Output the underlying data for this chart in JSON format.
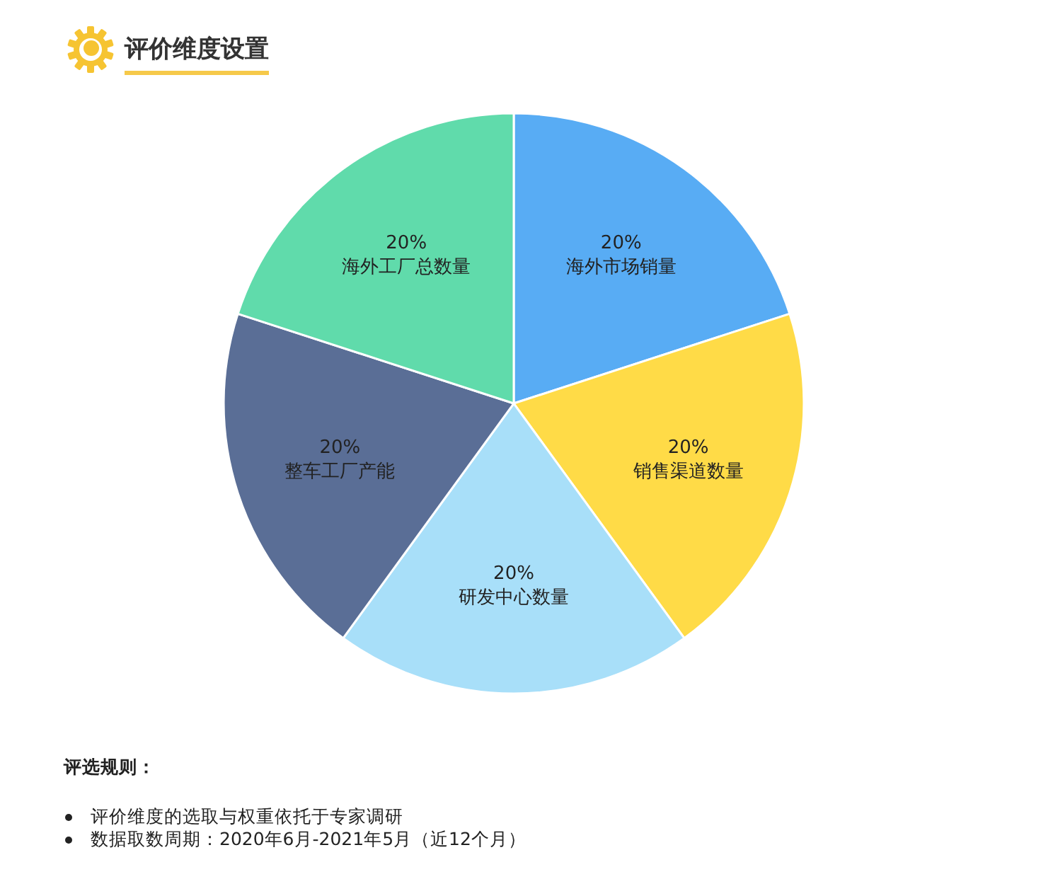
{
  "chart_data": {
    "type": "pie",
    "title": "评价维度设置",
    "categories": [
      "海外市场销量",
      "销售渠道数量",
      "研发中心数量",
      "整车工厂产能",
      "海外工厂总数量"
    ],
    "values": [
      20,
      20,
      20,
      20,
      20
    ],
    "value_labels": [
      "20%",
      "20%",
      "20%",
      "20%",
      "20%"
    ],
    "colors": [
      "#58acf4",
      "#ffdb47",
      "#a8dff9",
      "#5a6e96",
      "#60dbab"
    ],
    "annotations": [
      "评选规则：",
      "评价维度的选取与权重依托于专家调研",
      "数据取数周期：2020年6月-2021年5月（近12个月）"
    ]
  }
}
